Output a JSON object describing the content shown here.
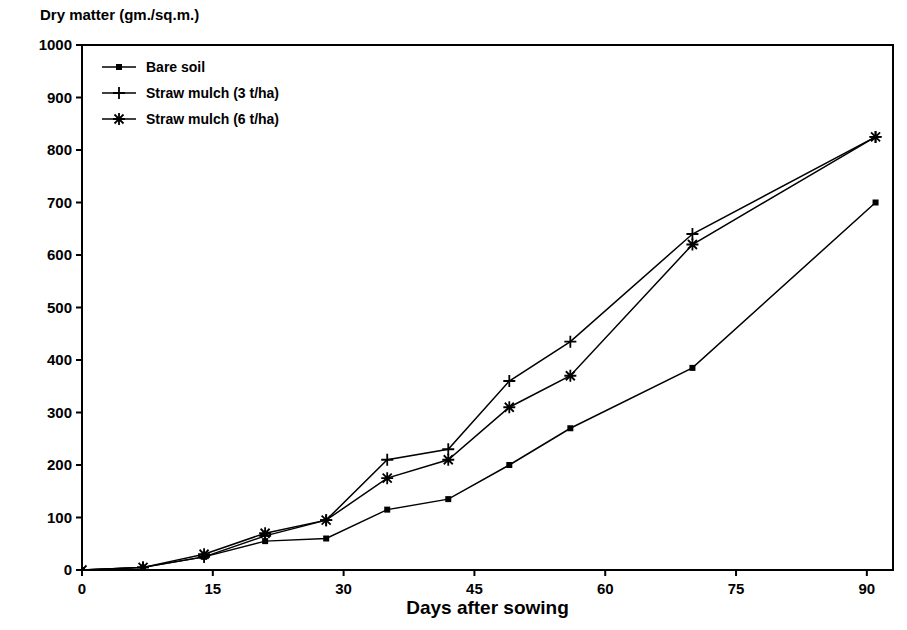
{
  "chart_data": {
    "type": "line",
    "y_label": "Dry matter (gm./sq.m.)",
    "x_label": "Days after sowing",
    "x": [
      0,
      7,
      14,
      21,
      28,
      35,
      42,
      49,
      56,
      70,
      91
    ],
    "series": [
      {
        "name": "Bare soil",
        "color": "#000000",
        "marker": "dot",
        "line_style": "solid",
        "values": [
          0,
          5,
          25,
          55,
          60,
          115,
          135,
          200,
          270,
          385,
          700
        ]
      },
      {
        "name": "Straw mulch (3 t/ha)",
        "color": "#000000",
        "marker": "plus",
        "line_style": "solid",
        "values": [
          0,
          5,
          25,
          65,
          95,
          210,
          230,
          360,
          435,
          640,
          825
        ]
      },
      {
        "name": "Straw mulch (6 t/ha)",
        "color": "#000000",
        "marker": "asterisk",
        "line_style": "solid",
        "values": [
          0,
          5,
          30,
          70,
          95,
          175,
          210,
          310,
          370,
          620,
          825
        ]
      }
    ],
    "xlim": [
      0,
      93
    ],
    "xticks": [
      0,
      15,
      30,
      45,
      60,
      75,
      90
    ],
    "ylim": [
      0,
      1000
    ],
    "yticks": [
      0,
      100,
      200,
      300,
      400,
      500,
      600,
      700,
      800,
      900,
      1000
    ],
    "grid": false,
    "legend": "upper left"
  }
}
